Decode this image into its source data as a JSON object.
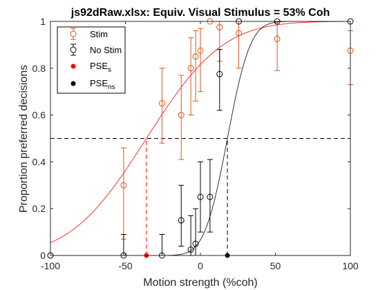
{
  "chart_data": {
    "type": "scatter",
    "title": "js92dRaw.xlsx: Equiv. Visual Stimulus = 53% Coh",
    "xlabel": "Motion strength (%coh)",
    "ylabel": "Proportion preferred decisions",
    "xlim": [
      -100,
      100
    ],
    "ylim": [
      0,
      1
    ],
    "xticks": [
      -100,
      -50,
      0,
      50,
      100
    ],
    "yticks": [
      0,
      0.2,
      0.4,
      0.6,
      0.8,
      1
    ],
    "xtick_labels": [
      "-100",
      "-50",
      "0",
      "50",
      "100"
    ],
    "ytick_labels": [
      "0",
      "0.2",
      "0.4",
      "0.6",
      "0.8",
      "1"
    ],
    "grid": false,
    "legend_position": "top-left",
    "reference_line_y": 0.5,
    "series": [
      {
        "name": "Stim",
        "color": "#d95319",
        "marker": "open-circle",
        "x": [
          -100,
          -51.2,
          -25.6,
          -12.8,
          -6.4,
          -3.2,
          0,
          6.4,
          12.8,
          25.6,
          51.2,
          100
        ],
        "y": [
          0.0,
          0.3,
          0.65,
          0.6,
          0.8,
          0.85,
          0.875,
          1.0,
          0.975,
          0.95,
          0.925,
          0.875
        ],
        "err_low": [
          0.0,
          0.07,
          0.48,
          0.41,
          0.6,
          0.66,
          0.7,
          1.0,
          0.83,
          0.8,
          0.79,
          0.73
        ],
        "err_high": [
          0.0,
          0.46,
          0.8,
          0.77,
          0.93,
          0.96,
          0.97,
          1.0,
          1.0,
          1.0,
          1.0,
          0.96
        ]
      },
      {
        "name": "No Stim",
        "color": "#000000",
        "marker": "open-circle",
        "x": [
          -100,
          -51.2,
          -25.6,
          -12.8,
          -6.4,
          -3.2,
          0,
          6.4,
          12.8,
          25.6,
          51.2,
          100
        ],
        "y": [
          0.0,
          0.0,
          0.0,
          0.15,
          0.025,
          0.05,
          0.25,
          0.25,
          0.775,
          1.0,
          1.0,
          1.0
        ],
        "err_low": [
          0.0,
          0.0,
          0.0,
          0.04,
          0.0,
          0.0,
          0.1,
          0.1,
          0.62,
          1.0,
          1.0,
          1.0
        ],
        "err_high": [
          0.0,
          0.09,
          0.09,
          0.3,
          0.17,
          0.2,
          0.4,
          0.41,
          0.88,
          1.0,
          1.0,
          1.0
        ]
      }
    ],
    "fits": [
      {
        "name": "Stim fit",
        "color": "#ff0000",
        "style": "solid",
        "mu": -36,
        "sigma": 40
      },
      {
        "name": "No Stim fit",
        "color": "#000000",
        "style": "solid",
        "mu": 18,
        "sigma": 12
      }
    ],
    "pse": [
      {
        "name": "PSE",
        "subscript": "s",
        "x": -36,
        "color": "#ff0000",
        "marker": "filled-circle"
      },
      {
        "name": "PSE",
        "subscript": "ns",
        "x": 18,
        "color": "#000000",
        "marker": "filled-circle"
      }
    ]
  }
}
